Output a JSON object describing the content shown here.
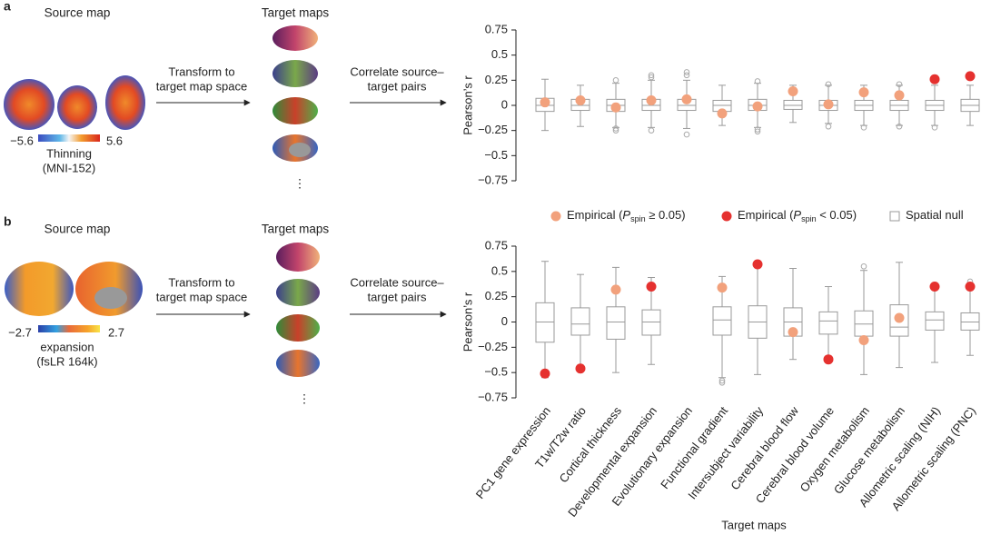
{
  "diagram": {
    "panel_a": {
      "letter": "a",
      "source_title": "Source map",
      "target_title": "Target maps",
      "arrow1": [
        "Transform to",
        "target map space"
      ],
      "arrow2": [
        "Correlate source–",
        "target pairs"
      ],
      "cbar_min": "−5.6",
      "cbar_max": "5.6",
      "cbar_label": [
        "Thinning",
        "(MNI-152)"
      ],
      "more": "⋮"
    },
    "panel_b": {
      "letter": "b",
      "source_title": "Source map",
      "target_title": "Target maps",
      "arrow1": [
        "Transform to",
        "target map space"
      ],
      "arrow2": [
        "Correlate source–",
        "target pairs"
      ],
      "cbar_min": "−2.7",
      "cbar_max": "2.7",
      "cbar_label": [
        "expansion",
        "(fsLR 164k)"
      ],
      "more": "⋮"
    }
  },
  "legend": [
    {
      "parts": [
        "Empirical (",
        "P",
        "spin",
        " ≥ 0.05)"
      ],
      "color": "#f2a17c"
    },
    {
      "parts": [
        "Empirical (",
        "P",
        "spin",
        " < 0.05)"
      ],
      "color": "#e5312f"
    },
    {
      "parts": [
        "Spatial null"
      ],
      "color": "#999999"
    }
  ],
  "chart_data": [
    {
      "type": "box",
      "ylabel": "Pearson’s r",
      "categories": [
        null,
        null,
        null,
        null,
        null,
        null,
        null,
        null,
        null,
        null,
        null,
        null,
        null
      ],
      "ylim": [
        -0.75,
        0.75
      ],
      "yticks": [
        0.75,
        0.5,
        0.25,
        0,
        {
          "value": -0.25,
          "label": "−0.25"
        },
        {
          "value": -0.5,
          "label": "−0.5"
        },
        {
          "value": -0.75,
          "label": "−0.75"
        }
      ],
      "low": [
        -0.25,
        -0.21,
        -0.22,
        -0.22,
        -0.23,
        -0.2,
        -0.22,
        -0.17,
        -0.18,
        -0.2,
        -0.2,
        -0.2,
        -0.2
      ],
      "q1": [
        -0.06,
        -0.05,
        -0.06,
        -0.05,
        -0.05,
        -0.06,
        -0.05,
        -0.04,
        -0.05,
        -0.05,
        -0.05,
        -0.05,
        -0.06
      ],
      "median": [
        0,
        0,
        0,
        0,
        0,
        0,
        0,
        0,
        0,
        0,
        0,
        0,
        0
      ],
      "q3": [
        0.07,
        0.06,
        0.06,
        0.06,
        0.06,
        0.05,
        0.06,
        0.05,
        0.05,
        0.05,
        0.05,
        0.05,
        0.06
      ],
      "high": [
        0.26,
        0.2,
        0.22,
        0.25,
        0.25,
        0.2,
        0.22,
        0.2,
        0.2,
        0.2,
        0.2,
        0.2,
        0.2
      ],
      "outliers": [
        [],
        [],
        [
          0.25,
          -0.23,
          -0.25
        ],
        [
          0.28,
          0.3,
          -0.25
        ],
        [
          0.3,
          0.33,
          -0.29
        ],
        [],
        [
          0.24,
          -0.24,
          -0.26
        ],
        [],
        [
          0.21,
          -0.21
        ],
        [
          -0.22
        ],
        [
          0.21,
          -0.21
        ],
        [
          -0.22
        ],
        []
      ],
      "empirical": [
        0.03,
        0.05,
        -0.02,
        0.05,
        0.06,
        -0.08,
        -0.01,
        0.14,
        0.01,
        0.13,
        0.1,
        0.26,
        0.29
      ],
      "significant": [
        false,
        false,
        false,
        false,
        false,
        false,
        false,
        false,
        false,
        false,
        false,
        true,
        true
      ]
    },
    {
      "type": "box",
      "ylabel": "Pearson’s r",
      "xlabel": "Target maps",
      "categories": [
        "PC1 gene expression",
        "T1w/T2w ratio",
        "Cortical thickness",
        "Developmental expansion",
        "Evolutionary expansion",
        "Functional gradient",
        "Intersubject variability",
        "Cerebral blood flow",
        "Cerebral blood volume",
        "Oxygen metabolism",
        "Glucose metabolism",
        "Allometric scaling (NIH)",
        "Allometric scaling (PNC)"
      ],
      "ylim": [
        -0.75,
        0.75
      ],
      "yticks": [
        0.75,
        0.5,
        0.25,
        0,
        {
          "value": -0.25,
          "label": "−0.25"
        },
        {
          "value": -0.5,
          "label": "−0.5"
        },
        {
          "value": -0.75,
          "label": "−0.75"
        }
      ],
      "low": [
        -0.55,
        -0.45,
        -0.5,
        -0.42,
        null,
        -0.55,
        -0.52,
        -0.37,
        -0.35,
        -0.52,
        -0.45,
        -0.4,
        -0.33
      ],
      "q1": [
        -0.2,
        -0.13,
        -0.17,
        -0.13,
        null,
        -0.13,
        -0.16,
        -0.14,
        -0.12,
        -0.14,
        -0.14,
        -0.08,
        -0.08
      ],
      "median": [
        0,
        -0.02,
        0,
        0,
        null,
        0.02,
        0,
        0,
        0.01,
        -0.02,
        -0.05,
        0.02,
        0
      ],
      "q3": [
        0.19,
        0.14,
        0.15,
        0.12,
        null,
        0.15,
        0.16,
        0.14,
        0.1,
        0.11,
        0.17,
        0.1,
        0.09
      ],
      "high": [
        0.6,
        0.47,
        0.54,
        0.44,
        null,
        0.45,
        0.6,
        0.53,
        0.35,
        0.51,
        0.59,
        0.35,
        0.38
      ],
      "outliers": [
        [],
        [],
        [],
        [],
        [],
        [
          -0.58,
          -0.6
        ],
        [],
        [],
        [],
        [
          0.55
        ],
        [],
        [],
        [
          0.4
        ]
      ],
      "empirical": [
        -0.51,
        -0.46,
        0.32,
        0.35,
        null,
        0.34,
        0.57,
        -0.1,
        -0.37,
        -0.18,
        0.04,
        0.35,
        0.35
      ],
      "significant": [
        true,
        true,
        false,
        true,
        null,
        false,
        true,
        false,
        true,
        false,
        false,
        true,
        true
      ]
    }
  ]
}
